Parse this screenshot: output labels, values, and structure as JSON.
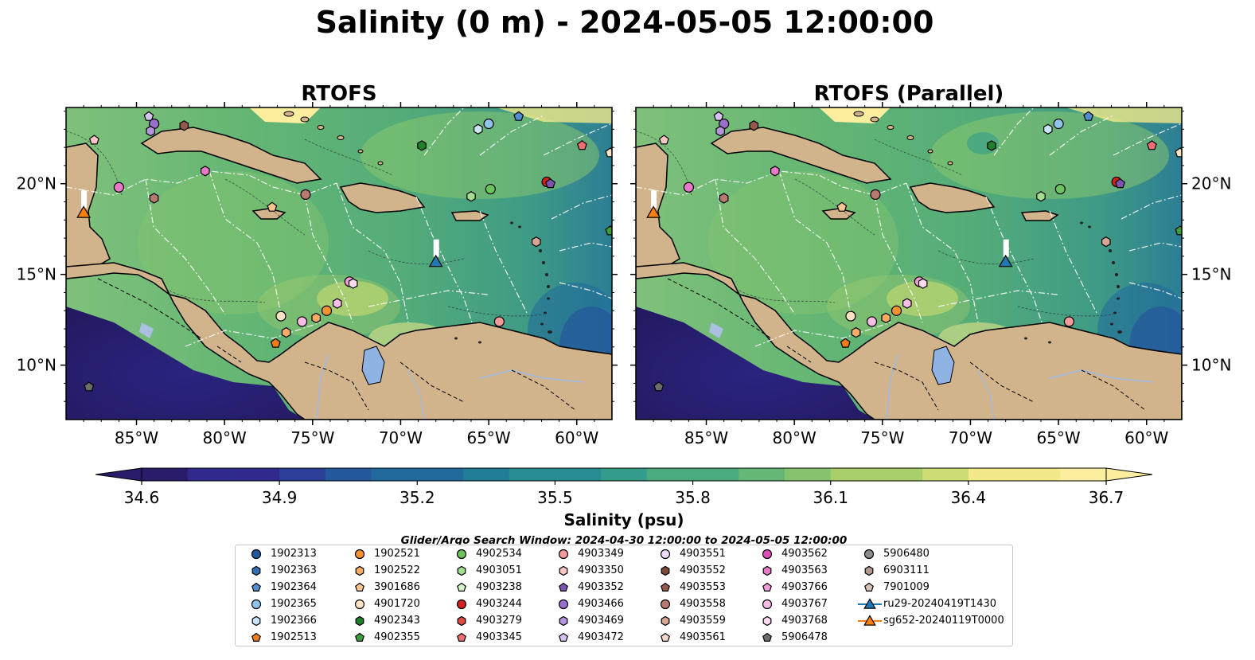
{
  "figure": {
    "title": "Salinity (0 m) - 2024-05-05 12:00:00",
    "panels": [
      {
        "title": "RTOFS"
      },
      {
        "title": "RTOFS (Parallel)"
      }
    ],
    "lon_ticks": [
      "85°W",
      "80°W",
      "75°W",
      "70°W",
      "65°W",
      "60°W"
    ],
    "lon_tick_values": [
      -85,
      -80,
      -75,
      -70,
      -65,
      -60
    ],
    "lat_ticks": [
      "20°N",
      "15°N",
      "10°N"
    ],
    "lat_tick_values": [
      20,
      15,
      10
    ],
    "extent": {
      "lon": [
        -89,
        -58
      ],
      "lat": [
        7,
        24.2
      ]
    },
    "colorbar": {
      "label": "Salinity (psu)",
      "ticks": [
        "34.6",
        "34.9",
        "35.2",
        "35.5",
        "35.8",
        "36.1",
        "36.4",
        "36.7"
      ],
      "min": 34.6,
      "max": 36.7,
      "colors": [
        "#2a1b6b",
        "#2f2a8c",
        "#2b3f98",
        "#25579c",
        "#216a9b",
        "#217c98",
        "#278d92",
        "#349c8a",
        "#4aab7f",
        "#65b776",
        "#85c36f",
        "#a8cf6c",
        "#ccdc72",
        "#f1e98a",
        "#fbee9f"
      ]
    },
    "search_window": "Glider/Argo Search Window: 2024-04-30 12:00:00 to 2024-05-05 12:00:00",
    "colors": {
      "land": "#d2b48c",
      "river": "#9db9e8",
      "lake": "#8fb3e3"
    }
  },
  "legend": [
    {
      "label": "1902313",
      "marker": "circle",
      "color": "#1f5a9c"
    },
    {
      "label": "1902363",
      "marker": "hexagon",
      "color": "#2f6fb2"
    },
    {
      "label": "1902364",
      "marker": "pentagon",
      "color": "#4f8fd0"
    },
    {
      "label": "1902365",
      "marker": "circle",
      "color": "#8fc3ec"
    },
    {
      "label": "1902366",
      "marker": "hexagon",
      "color": "#c9e6f8"
    },
    {
      "label": "1902513",
      "marker": "pentagon",
      "color": "#f07c16"
    },
    {
      "label": "1902521",
      "marker": "circle",
      "color": "#f5912f"
    },
    {
      "label": "1902522",
      "marker": "hexagon",
      "color": "#f8ac63"
    },
    {
      "label": "3901686",
      "marker": "pentagon",
      "color": "#fbc590"
    },
    {
      "label": "4901720",
      "marker": "circle",
      "color": "#fde2c4"
    },
    {
      "label": "4902343",
      "marker": "hexagon",
      "color": "#1f7f2a"
    },
    {
      "label": "4902355",
      "marker": "pentagon",
      "color": "#3a9e3a"
    },
    {
      "label": "4902534",
      "marker": "circle",
      "color": "#6cc25d"
    },
    {
      "label": "4903051",
      "marker": "hexagon",
      "color": "#a3dd8f"
    },
    {
      "label": "4903238",
      "marker": "pentagon",
      "color": "#d4f2c8"
    },
    {
      "label": "4903244",
      "marker": "circle",
      "color": "#d02020"
    },
    {
      "label": "4903279",
      "marker": "hexagon",
      "color": "#e04a45"
    },
    {
      "label": "4903345",
      "marker": "pentagon",
      "color": "#ee6e72"
    },
    {
      "label": "4903349",
      "marker": "circle",
      "color": "#f39a9a"
    },
    {
      "label": "4903350",
      "marker": "hexagon",
      "color": "#f9c6c4"
    },
    {
      "label": "4903352",
      "marker": "pentagon",
      "color": "#7b52ad"
    },
    {
      "label": "4903466",
      "marker": "circle",
      "color": "#9a6fcb"
    },
    {
      "label": "4903469",
      "marker": "hexagon",
      "color": "#b596dd"
    },
    {
      "label": "4903472",
      "marker": "pentagon",
      "color": "#d6c4f0"
    },
    {
      "label": "4903551",
      "marker": "circle",
      "color": "#e9dcf7"
    },
    {
      "label": "4903552",
      "marker": "hexagon",
      "color": "#7d4a3a"
    },
    {
      "label": "4903553",
      "marker": "pentagon",
      "color": "#96584a"
    },
    {
      "label": "4903558",
      "marker": "circle",
      "color": "#b87a6e"
    },
    {
      "label": "4903559",
      "marker": "hexagon",
      "color": "#d6a596"
    },
    {
      "label": "4903561",
      "marker": "pentagon",
      "color": "#f3d6cc"
    },
    {
      "label": "4903562",
      "marker": "circle",
      "color": "#d84fb8"
    },
    {
      "label": "4903563",
      "marker": "hexagon",
      "color": "#e878c8"
    },
    {
      "label": "4903766",
      "marker": "pentagon",
      "color": "#f29bd8"
    },
    {
      "label": "4903767",
      "marker": "circle",
      "color": "#f8bde4"
    },
    {
      "label": "4903768",
      "marker": "hexagon",
      "color": "#fcdaf0"
    },
    {
      "label": "5906478",
      "marker": "pentagon",
      "color": "#6c6c6c"
    },
    {
      "label": "5906480",
      "marker": "circle",
      "color": "#8c8c8c"
    },
    {
      "label": "6903111",
      "marker": "hexagon",
      "color": "#b09a90"
    },
    {
      "label": "7901009",
      "marker": "pentagon",
      "color": "#d8c2b8"
    },
    {
      "label": "ru29-20240419T1430",
      "marker": "triangle-line",
      "color": "#1f77b4"
    },
    {
      "label": "sg652-20240119T0000",
      "marker": "triangle-line",
      "color": "#ff7f0e"
    }
  ],
  "map_markers": [
    {
      "lon": -84.3,
      "lat": 23.7,
      "marker": "pentagon",
      "color": "#d6c4f0"
    },
    {
      "lon": -84.0,
      "lat": 23.3,
      "marker": "circle",
      "color": "#9a6fcb"
    },
    {
      "lon": -84.2,
      "lat": 22.9,
      "marker": "hexagon",
      "color": "#b596dd"
    },
    {
      "lon": -82.3,
      "lat": 23.2,
      "marker": "hexagon",
      "color": "#96584a"
    },
    {
      "lon": -87.4,
      "lat": 22.4,
      "marker": "pentagon",
      "color": "#f9c6c4"
    },
    {
      "lon": -81.1,
      "lat": 20.7,
      "marker": "hexagon",
      "color": "#e878c8"
    },
    {
      "lon": -86.0,
      "lat": 19.8,
      "marker": "circle",
      "color": "#e878c8"
    },
    {
      "lon": -84.0,
      "lat": 19.2,
      "marker": "hexagon",
      "color": "#b87a6e"
    },
    {
      "lon": -77.3,
      "lat": 18.7,
      "marker": "pentagon",
      "color": "#fbc590"
    },
    {
      "lon": -75.4,
      "lat": 19.4,
      "marker": "circle",
      "color": "#b87a6e"
    },
    {
      "lon": -63.3,
      "lat": 23.7,
      "marker": "pentagon",
      "color": "#4f8fd0"
    },
    {
      "lon": -65.0,
      "lat": 23.3,
      "marker": "circle",
      "color": "#8fc3ec"
    },
    {
      "lon": -65.6,
      "lat": 23.0,
      "marker": "hexagon",
      "color": "#c9e6f8"
    },
    {
      "lon": -68.8,
      "lat": 22.1,
      "marker": "hexagon",
      "color": "#1f7f2a"
    },
    {
      "lon": -59.7,
      "lat": 22.1,
      "marker": "pentagon",
      "color": "#ee6e72"
    },
    {
      "lon": -58.1,
      "lat": 21.7,
      "marker": "pentagon",
      "color": "#fde2c4"
    },
    {
      "lon": -57.4,
      "lat": 21.9,
      "marker": "circle",
      "color": "#1f5a9c"
    },
    {
      "lon": -61.7,
      "lat": 20.1,
      "marker": "circle",
      "color": "#d02020"
    },
    {
      "lon": -61.5,
      "lat": 20.0,
      "marker": "pentagon",
      "color": "#7b52ad"
    },
    {
      "lon": -64.9,
      "lat": 19.7,
      "marker": "circle",
      "color": "#6cc25d"
    },
    {
      "lon": -66.0,
      "lat": 19.3,
      "marker": "hexagon",
      "color": "#a3dd8f"
    },
    {
      "lon": -58.1,
      "lat": 17.4,
      "marker": "pentagon",
      "color": "#3a9e3a"
    },
    {
      "lon": -62.3,
      "lat": 16.8,
      "marker": "hexagon",
      "color": "#d6a596"
    },
    {
      "lon": -72.9,
      "lat": 14.6,
      "marker": "circle",
      "color": "#f29bd8"
    },
    {
      "lon": -72.7,
      "lat": 14.5,
      "marker": "hexagon",
      "color": "#fcdaf0"
    },
    {
      "lon": -73.6,
      "lat": 13.4,
      "marker": "hexagon",
      "color": "#f8bde4"
    },
    {
      "lon": -74.2,
      "lat": 13.0,
      "marker": "circle",
      "color": "#f5912f"
    },
    {
      "lon": -74.8,
      "lat": 12.6,
      "marker": "hexagon",
      "color": "#f8ac63"
    },
    {
      "lon": -75.6,
      "lat": 12.4,
      "marker": "circle",
      "color": "#f8bde4"
    },
    {
      "lon": -76.8,
      "lat": 12.7,
      "marker": "circle",
      "color": "#fde2c4"
    },
    {
      "lon": -76.5,
      "lat": 11.8,
      "marker": "hexagon",
      "color": "#f8ac63"
    },
    {
      "lon": -77.1,
      "lat": 11.2,
      "marker": "pentagon",
      "color": "#f07c16"
    },
    {
      "lon": -64.4,
      "lat": 12.4,
      "marker": "circle",
      "color": "#f39a9a"
    },
    {
      "lon": -87.7,
      "lat": 8.8,
      "marker": "pentagon",
      "color": "#6c6c6c"
    },
    {
      "lon": -88.0,
      "lat": 18.4,
      "marker": "triangle",
      "color": "#ff7f0e"
    },
    {
      "lon": -68.0,
      "lat": 15.7,
      "marker": "triangle",
      "color": "#1f77b4"
    }
  ]
}
